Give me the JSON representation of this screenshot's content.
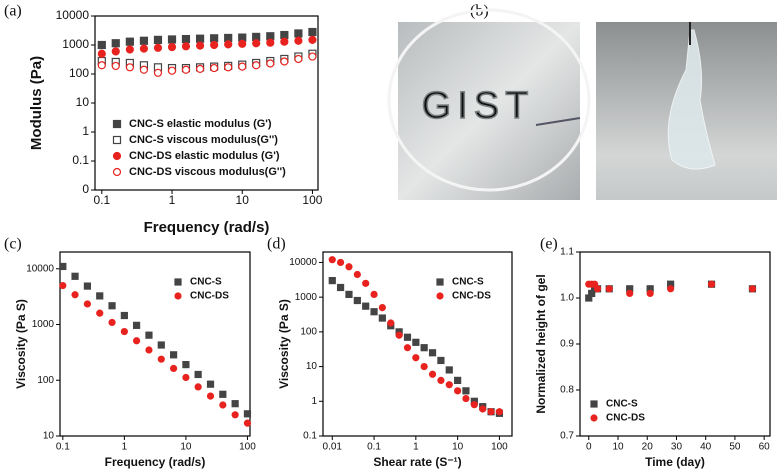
{
  "chart_data": [
    {
      "type": "scatter",
      "label": "(a)",
      "xlabel": "Frequency (rad/s)",
      "ylabel": "Modulus (Pa)",
      "xlog": true,
      "ylog": true,
      "xlim": [
        0.08,
        120
      ],
      "ylim": [
        0.01,
        10000
      ],
      "xticks": [
        0.1,
        1,
        10,
        100
      ],
      "yticks": [
        {
          "value": 0.01,
          "label": "0"
        },
        0.1,
        1,
        10,
        100,
        1000,
        10000
      ],
      "legend": "lower left",
      "x": [
        0.1,
        0.158,
        0.251,
        0.398,
        0.631,
        1,
        1.58,
        2.51,
        3.98,
        6.31,
        10,
        15.8,
        25.1,
        39.8,
        63.1,
        100
      ],
      "series": [
        {
          "name": "CNC-S elastic modulus (G')",
          "color": "#444444",
          "marker": "square",
          "filled": true,
          "values": [
            1000,
            1150,
            1300,
            1400,
            1500,
            1550,
            1600,
            1650,
            1700,
            1750,
            1800,
            1900,
            2000,
            2200,
            2500,
            2800
          ]
        },
        {
          "name": "CNC-S viscous modulus(G'')",
          "color": "#444444",
          "marker": "square",
          "filled": false,
          "values": [
            280,
            260,
            240,
            200,
            170,
            160,
            160,
            170,
            180,
            190,
            210,
            240,
            280,
            330,
            400,
            500
          ]
        },
        {
          "name": "CNC-DS elastic modulus (G')",
          "color": "#e8231f",
          "marker": "circle",
          "filled": true,
          "values": [
            500,
            600,
            700,
            750,
            800,
            850,
            900,
            950,
            1000,
            1050,
            1100,
            1150,
            1200,
            1300,
            1400,
            1500
          ]
        },
        {
          "name": "CNC-DS viscous modulus(G'')",
          "color": "#e8231f",
          "marker": "circle",
          "filled": false,
          "values": [
            200,
            190,
            170,
            140,
            110,
            130,
            140,
            150,
            160,
            170,
            180,
            200,
            230,
            270,
            330,
            400
          ]
        }
      ]
    },
    {
      "type": "image",
      "label": "(b)",
      "text": "GIST"
    },
    {
      "type": "scatter",
      "label": "(c)",
      "xlabel": "Frequency (rad/s)",
      "ylabel": "Viscosity (Pa S)",
      "xlog": true,
      "ylog": true,
      "xlim": [
        0.09,
        110
      ],
      "ylim": [
        10,
        20000
      ],
      "xticks": [
        0.1,
        1,
        10,
        100
      ],
      "yticks": [
        10,
        100,
        1000,
        10000
      ],
      "legend": "upper right",
      "x": [
        0.1,
        0.158,
        0.251,
        0.398,
        0.631,
        1,
        1.58,
        2.51,
        3.98,
        6.31,
        10,
        15.8,
        25.1,
        39.8,
        63.1,
        100
      ],
      "series": [
        {
          "name": "CNC-S",
          "color": "#444444",
          "marker": "square",
          "filled": true,
          "values": [
            11000,
            7330,
            4890,
            3260,
            2170,
            1450,
            966,
            644,
            429,
            286,
            191,
            127,
            85,
            56,
            38,
            25
          ]
        },
        {
          "name": "CNC-DS",
          "color": "#e8231f",
          "marker": "circle",
          "filled": true,
          "values": [
            5000,
            3420,
            2340,
            1600,
            1090,
            747,
            511,
            349,
            239,
            163,
            112,
            76,
            52,
            36,
            24,
            17
          ]
        }
      ]
    },
    {
      "type": "scatter",
      "label": "(d)",
      "xlabel": "Shear rate (S⁻¹)",
      "ylabel": "Viscosity (Pa S)",
      "xlog": true,
      "ylog": true,
      "xlim": [
        0.006,
        200
      ],
      "ylim": [
        0.1,
        20000
      ],
      "xticks": [
        0.01,
        0.1,
        1,
        10,
        100
      ],
      "yticks": [
        0.1,
        1,
        10,
        100,
        1000,
        10000
      ],
      "legend": "upper right",
      "x": [
        0.01,
        0.0158,
        0.0251,
        0.0398,
        0.0631,
        0.1,
        0.158,
        0.251,
        0.398,
        0.631,
        1,
        1.58,
        2.51,
        3.98,
        6.31,
        10,
        15.8,
        25.1,
        39.8,
        63.1,
        100
      ],
      "series": [
        {
          "name": "CNC-S",
          "color": "#444444",
          "marker": "square",
          "filled": true,
          "values": [
            3000,
            1900,
            1200,
            800,
            550,
            380,
            250,
            150,
            100,
            70,
            50,
            35,
            25,
            15,
            8,
            4,
            2,
            1,
            0.7,
            0.5,
            0.45
          ]
        },
        {
          "name": "CNC-DS",
          "color": "#e8231f",
          "marker": "circle",
          "filled": true,
          "values": [
            12000,
            10000,
            7500,
            4500,
            2500,
            1200,
            500,
            180,
            80,
            35,
            18,
            10,
            6,
            4,
            3,
            2,
            1.2,
            0.8,
            0.6,
            0.5,
            0.5
          ]
        }
      ]
    },
    {
      "type": "scatter",
      "label": "(e)",
      "xlabel": "Time (day)",
      "ylabel": "Normalized height of gel",
      "xlog": false,
      "ylog": false,
      "xlim": [
        -3,
        62
      ],
      "ylim": [
        0.7,
        1.1
      ],
      "xticks": [
        0,
        10,
        20,
        30,
        40,
        50,
        60
      ],
      "yticks": [
        0.7,
        0.8,
        0.9,
        {
          "value": 1,
          "label": "1.0"
        },
        1.1
      ],
      "legend": "lower left",
      "x": [
        0,
        1,
        2,
        3,
        7,
        14,
        21,
        28,
        42,
        56
      ],
      "series": [
        {
          "name": "CNC-S",
          "color": "#444444",
          "marker": "square",
          "filled": true,
          "values": [
            1.0,
            1.01,
            1.02,
            1.02,
            1.02,
            1.02,
            1.02,
            1.03,
            1.03,
            1.02
          ]
        },
        {
          "name": "CNC-DS",
          "color": "#e8231f",
          "marker": "circle",
          "filled": true,
          "values": [
            1.03,
            1.03,
            1.03,
            1.02,
            1.02,
            1.01,
            1.01,
            1.02,
            1.03,
            1.02
          ]
        }
      ]
    }
  ]
}
